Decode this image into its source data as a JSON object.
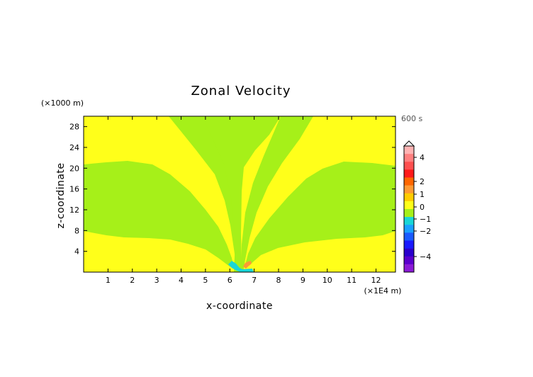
{
  "chart_data": {
    "type": "heatmap",
    "title": "Zonal Velocity",
    "xlabel": "x-coordinate",
    "ylabel": "z-coordinate",
    "x_unit": "(×1E4 m)",
    "y_unit": "(×1000 m)",
    "time_label": "600 s",
    "xlim": [
      0,
      12.8
    ],
    "ylim": [
      0,
      30
    ],
    "x_ticks": [
      "1",
      "2",
      "3",
      "4",
      "5",
      "6",
      "7",
      "8",
      "9",
      "10",
      "11",
      "12"
    ],
    "y_ticks": [
      "4",
      "8",
      "12",
      "16",
      "20",
      "24",
      "28"
    ],
    "colorbar": {
      "ticks": [
        "4",
        "2",
        "1",
        "0",
        "−1",
        "−2",
        "−4"
      ],
      "range": [
        -5,
        5
      ]
    },
    "fields": {
      "background": "near 0 to +0.5 (yellow)",
      "regions": [
        {
          "name": "left lower band",
          "value_class": "0 to -0.5 (green)"
        },
        {
          "name": "left upper band",
          "value_class": "0 to -0.5 (green)"
        },
        {
          "name": "central column",
          "value_class": "0 to -0.5 (green)"
        },
        {
          "name": "right upper band",
          "value_class": "0 to -0.5 (green)"
        },
        {
          "name": "right lower band",
          "value_class": "0 to -0.5 (green)"
        },
        {
          "name": "center bottom negative",
          "value_class": "-1 to -1.5 (cyan)"
        },
        {
          "name": "center bottom positive",
          "value_class": "+1 to +1.5 (orange)"
        }
      ]
    },
    "colors": {
      "yellow": "#ffff1a",
      "green": "#a6f019",
      "cyan": "#19d6d6",
      "orange": "#ff9a33"
    }
  }
}
